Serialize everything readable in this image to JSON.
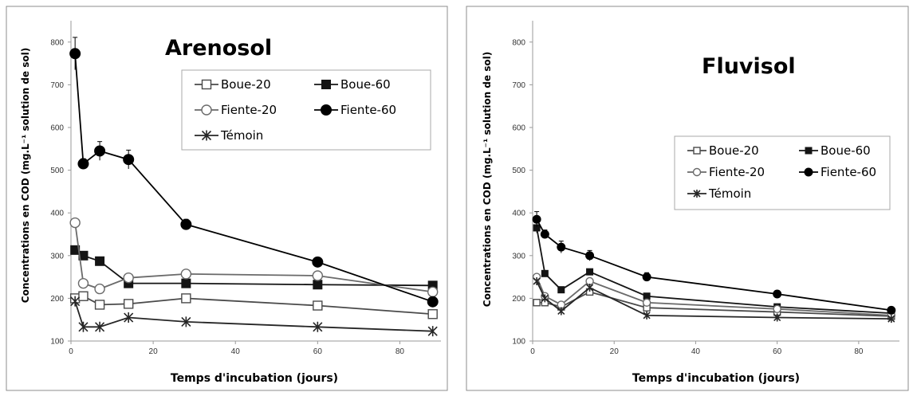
{
  "chart_data": [
    {
      "type": "line",
      "title": "Arenosol",
      "xlabel": "Temps d'incubation (jours)",
      "ylabel": "Concentrations en COD (mg.L⁻¹ solution de sol)",
      "xlim": [
        0,
        90
      ],
      "ylim": [
        100,
        850
      ],
      "x_ticks": [
        0,
        20,
        40,
        60,
        80
      ],
      "y_ticks": [
        100,
        200,
        300,
        400,
        500,
        600,
        700,
        800
      ],
      "x": [
        1,
        3,
        7,
        14,
        28,
        60,
        88
      ],
      "grid": false,
      "legend": "top-right",
      "series": [
        {
          "name": "Boue-20",
          "marker": "square-open",
          "values": [
            200,
            205,
            185,
            187,
            200,
            183,
            163
          ]
        },
        {
          "name": "Boue-60",
          "marker": "square-filled",
          "values": [
            313,
            300,
            287,
            235,
            235,
            232,
            230
          ]
        },
        {
          "name": "Fiente-20",
          "marker": "circle-open",
          "values": [
            377,
            235,
            222,
            248,
            257,
            253,
            215
          ]
        },
        {
          "name": "Fiente-60",
          "marker": "circle-filled",
          "values": [
            773,
            515,
            545,
            525,
            373,
            285,
            192
          ]
        },
        {
          "name": "Témoin",
          "marker": "star",
          "values": [
            193,
            133,
            133,
            155,
            145,
            133,
            123
          ]
        }
      ]
    },
    {
      "type": "line",
      "title": "Fluvisol",
      "xlabel": "Temps d'incubation (jours)",
      "ylabel": "Concentrations en COD (mg.L⁻¹ solution de sol)",
      "xlim": [
        0,
        90
      ],
      "ylim": [
        100,
        850
      ],
      "x_ticks": [
        0,
        20,
        40,
        60,
        80
      ],
      "y_ticks": [
        100,
        200,
        300,
        400,
        500,
        600,
        700,
        800
      ],
      "x": [
        1,
        3,
        7,
        14,
        28,
        60,
        88
      ],
      "grid": false,
      "legend": "top-right",
      "series": [
        {
          "name": "Boue-20",
          "marker": "square-open",
          "values": [
            190,
            190,
            180,
            215,
            178,
            168,
            158
          ]
        },
        {
          "name": "Boue-60",
          "marker": "square-filled",
          "values": [
            365,
            258,
            220,
            262,
            205,
            180,
            165
          ]
        },
        {
          "name": "Fiente-20",
          "marker": "circle-open",
          "values": [
            250,
            205,
            185,
            240,
            190,
            175,
            160
          ]
        },
        {
          "name": "Fiente-60",
          "marker": "circle-filled",
          "values": [
            385,
            350,
            320,
            300,
            250,
            210,
            172
          ]
        },
        {
          "name": "Témoin",
          "marker": "star",
          "values": [
            240,
            200,
            170,
            225,
            160,
            155,
            152
          ]
        }
      ]
    }
  ]
}
